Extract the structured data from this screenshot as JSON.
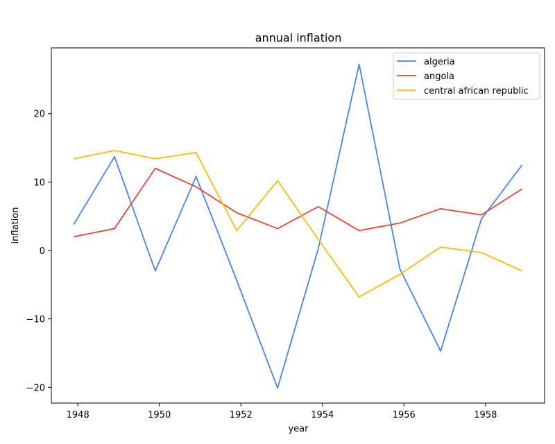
{
  "chart_data": {
    "type": "line",
    "title": "annual inflation",
    "xlabel": "year",
    "ylabel": "inflation",
    "x": [
      1947.9,
      1948.9,
      1949.9,
      1950.9,
      1951.9,
      1952.9,
      1953.9,
      1954.9,
      1955.9,
      1956.9,
      1957.9,
      1958.9
    ],
    "xlim": [
      1947.35,
      1959.45
    ],
    "ylim": [
      -22.3,
      29.6
    ],
    "xticks": [
      1948,
      1950,
      1952,
      1954,
      1956,
      1958
    ],
    "xtick_labels": [
      "1948",
      "1950",
      "1952",
      "1954",
      "1956",
      "1958"
    ],
    "yticks": [
      -20,
      -10,
      0,
      10,
      20
    ],
    "ytick_labels": [
      "−20",
      "−10",
      "0",
      "10",
      "20"
    ],
    "grid": false,
    "legend_position": "top-right",
    "series": [
      {
        "name": "algeria",
        "color": "#4285f4",
        "values": [
          3.8,
          13.7,
          -3.0,
          10.8,
          -4.4,
          -20.1,
          0.3,
          27.2,
          -2.7,
          -14.7,
          4.6,
          12.5
        ]
      },
      {
        "name": "angola",
        "color": "#ea4335",
        "values": [
          2.0,
          3.2,
          12.0,
          9.3,
          5.5,
          3.2,
          6.4,
          2.9,
          4.0,
          6.1,
          5.2,
          9.0
        ]
      },
      {
        "name": "central african republic",
        "color": "#fbbc04",
        "values": [
          13.4,
          14.6,
          13.4,
          14.3,
          2.9,
          10.2,
          1.6,
          -6.8,
          -3.5,
          0.5,
          -0.3,
          -3.0
        ]
      }
    ]
  }
}
